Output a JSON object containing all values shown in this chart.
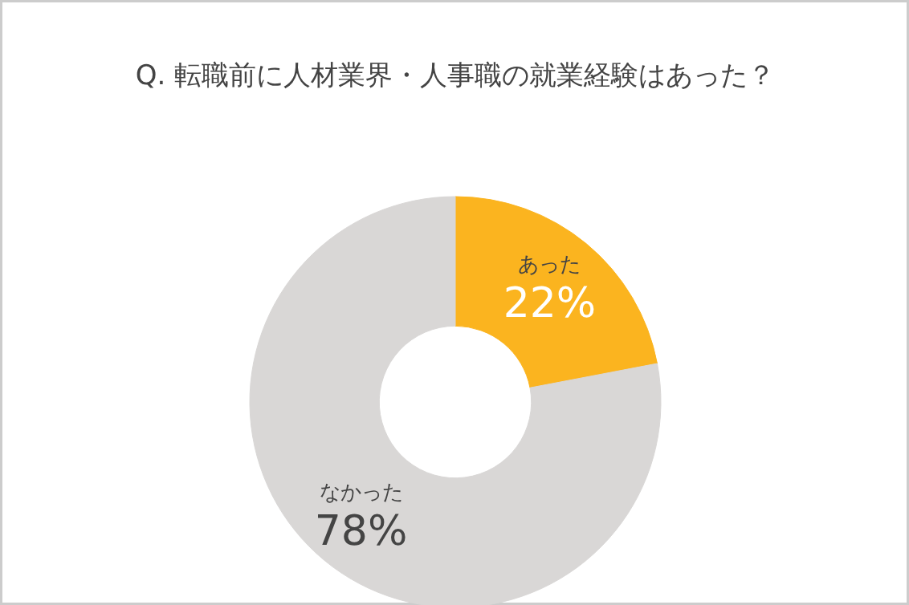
{
  "chart_data": {
    "type": "donut",
    "title": "Q. 転職前に人材業界・人事職の就業経験はあった？",
    "categories": [
      "あった",
      "なかった"
    ],
    "values": [
      22,
      78
    ],
    "colors": [
      "#fbb41f",
      "#d9d7d6"
    ],
    "value_labels": [
      "22%",
      "78%"
    ]
  }
}
